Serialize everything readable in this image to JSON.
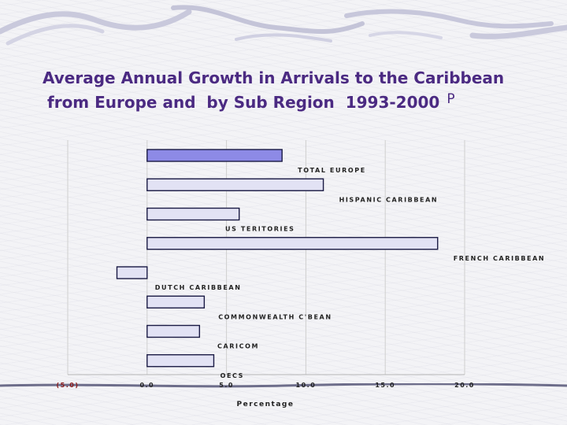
{
  "title_line1": "Average Annual Growth in Arrivals to the Caribbean",
  "title_line2": "from Europe and  by Sub Region  1993-2000",
  "title_suffix": "P",
  "chart_data": {
    "type": "bar",
    "orientation": "horizontal",
    "categories": [
      "TOTAL EUROPE",
      "HISPANIC CARIBBEAN",
      "US TERITORIES",
      "FRENCH CARIBBEAN",
      "DUTCH CARIBBEAN",
      "COMMONWEALTH  C'BEAN",
      "CARICOM",
      "OECS"
    ],
    "values": [
      8.5,
      11.1,
      5.8,
      18.3,
      -1.9,
      3.6,
      3.3,
      4.2
    ],
    "xlabel": "Percentage",
    "ylabel": "",
    "xlim": [
      -5.0,
      20.0
    ],
    "xticks": [
      -5.0,
      0.0,
      5.0,
      10.0,
      15.0,
      20.0
    ],
    "xtick_labels": [
      "(5.0)",
      "0.0",
      "5.0",
      "10.0",
      "15.0",
      "20.0"
    ],
    "grid": true,
    "colors": {
      "first_bar": "#8d8ae6",
      "bar": "#e2e2f4",
      "bar_stroke": "#1a1a44",
      "negative_tick": "#8b1a1a",
      "title": "#4b2a82"
    }
  }
}
